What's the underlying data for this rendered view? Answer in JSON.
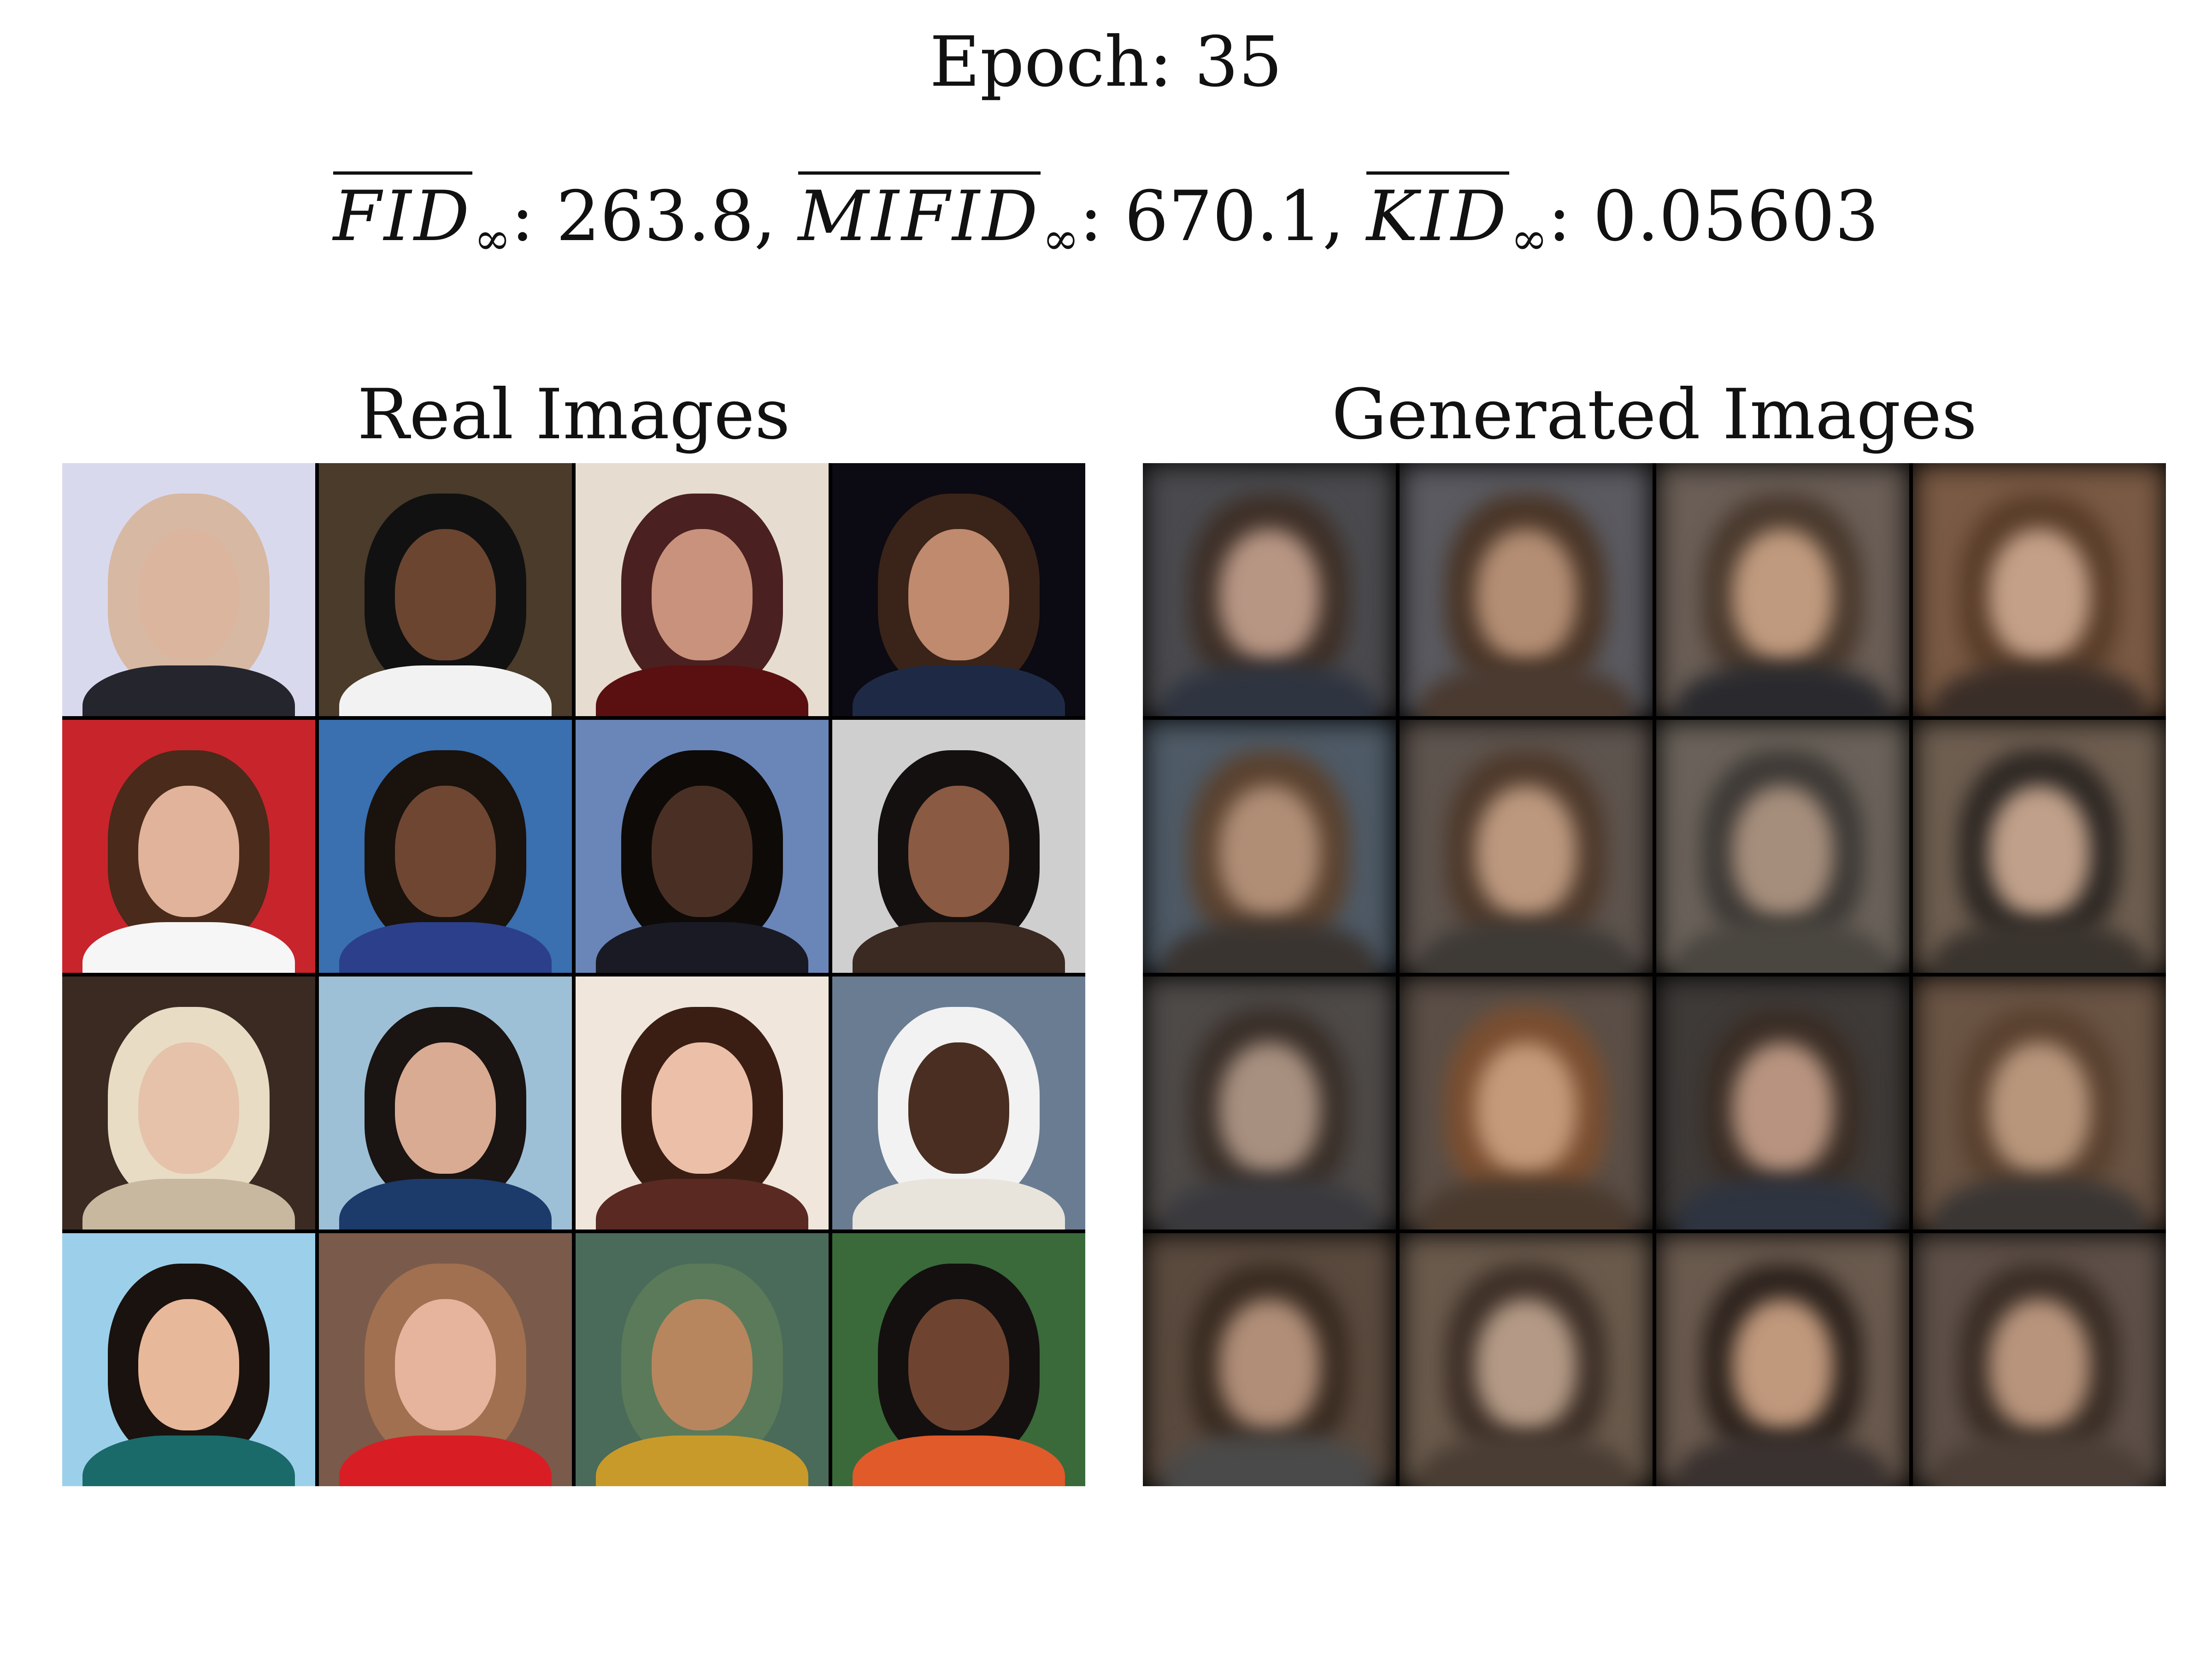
{
  "figure": {
    "epoch_title": "Epoch: 35",
    "metrics": [
      {
        "name": "FID",
        "subscript": "∞",
        "value": "263.8",
        "separator": ","
      },
      {
        "name": "MIFID",
        "subscript": "∞",
        "value": "670.1",
        "separator": ","
      },
      {
        "name": "KID",
        "subscript": "∞",
        "value": "0.05603",
        "separator": ""
      }
    ],
    "real_panel": {
      "title": "Real Images",
      "tiles": [
        {
          "bg": "#d9d9ee",
          "hair": "#d7b8a2",
          "face": "#dcb59e",
          "body": "#25252e"
        },
        {
          "bg": "#4a3b2a",
          "hair": "#111111",
          "face": "#6b4530",
          "body": "#f2f2f2"
        },
        {
          "bg": "#e6ddd0",
          "hair": "#4a2020",
          "face": "#c9927d",
          "body": "#5a1010"
        },
        {
          "bg": "#0c0a12",
          "hair": "#3a2318",
          "face": "#c08a6e",
          "body": "#1e2a45"
        },
        {
          "bg": "#c8242c",
          "hair": "#4a2a1a",
          "face": "#e0b39a",
          "body": "#f6f6f6"
        },
        {
          "bg": "#3a6fb0",
          "hair": "#1a120c",
          "face": "#6e4632",
          "body": "#2c3f8a"
        },
        {
          "bg": "#6a86b8",
          "hair": "#0e0a08",
          "face": "#4a3024",
          "body": "#1a1a24"
        },
        {
          "bg": "#cfcfcf",
          "hair": "#141010",
          "face": "#8a5a42",
          "body": "#3a2a22"
        },
        {
          "bg": "#3a2a22",
          "hair": "#e8dcc4",
          "face": "#e6c2aa",
          "body": "#c8b8a0"
        },
        {
          "bg": "#9ec0d6",
          "hair": "#1a1412",
          "face": "#d8ab92",
          "body": "#1c3a6a"
        },
        {
          "bg": "#f0e6dc",
          "hair": "#3a1e14",
          "face": "#ecc0a8",
          "body": "#5a2a22"
        },
        {
          "bg": "#6a7c92",
          "hair": "#f2f2f2",
          "face": "#4a2e22",
          "body": "#e8e4dc"
        },
        {
          "bg": "#9cd0ea",
          "hair": "#1a120e",
          "face": "#e8b89a",
          "body": "#1a6a6a"
        },
        {
          "bg": "#7a5a4a",
          "hair": "#a07050",
          "face": "#e6b49c",
          "body": "#d81e24"
        },
        {
          "bg": "#4a6a5a",
          "hair": "#5a7a5a",
          "face": "#b8865e",
          "body": "#c89a2a"
        },
        {
          "bg": "#3a6a3a",
          "hair": "#141010",
          "face": "#6e4430",
          "body": "#e05a2a"
        }
      ]
    },
    "generated_panel": {
      "title": "Generated Images",
      "tiles": [
        {
          "bg": "#4a4a4e",
          "hair": "#3e3028",
          "face": "#b89684",
          "body": "#2e3440"
        },
        {
          "bg": "#5a5a60",
          "hair": "#4a3628",
          "face": "#b48e74",
          "body": "#4a3a30"
        },
        {
          "bg": "#6a5e56",
          "hair": "#4a3a2e",
          "face": "#c09a7e",
          "body": "#2a2a2e"
        },
        {
          "bg": "#7a5a44",
          "hair": "#5a3e2a",
          "face": "#c4a088",
          "body": "#3a2e28"
        },
        {
          "bg": "#4e5a66",
          "hair": "#5a4230",
          "face": "#b08e76",
          "body": "#3a3430"
        },
        {
          "bg": "#5e544e",
          "hair": "#4e3a2c",
          "face": "#bc987e",
          "body": "#3e3a36"
        },
        {
          "bg": "#6a625a",
          "hair": "#3e3a36",
          "face": "#a68e7c",
          "body": "#4a4640"
        },
        {
          "bg": "#6e5e50",
          "hair": "#2e2824",
          "face": "#c0a08a",
          "body": "#3a342e"
        },
        {
          "bg": "#4e4a48",
          "hair": "#3a302a",
          "face": "#a89080",
          "body": "#3a3a3e"
        },
        {
          "bg": "#5a4e46",
          "hair": "#7a4e30",
          "face": "#c49a7a",
          "body": "#4a3a2e"
        },
        {
          "bg": "#3e3a38",
          "hair": "#3a2e26",
          "face": "#b89480",
          "body": "#2e3440"
        },
        {
          "bg": "#6a5444",
          "hair": "#5a4230",
          "face": "#b8967c",
          "body": "#3a3634"
        },
        {
          "bg": "#5a4a3e",
          "hair": "#3a2c22",
          "face": "#b08e78",
          "body": "#4a4a4a"
        },
        {
          "bg": "#6a5a4c",
          "hair": "#3e3028",
          "face": "#b49a86",
          "body": "#4a3e34"
        },
        {
          "bg": "#6a5a4e",
          "hair": "#2e241e",
          "face": "#c0987c",
          "body": "#3a3230"
        },
        {
          "bg": "#5e5048",
          "hair": "#3a2e26",
          "face": "#b8947c",
          "body": "#4a3e36"
        }
      ]
    }
  }
}
